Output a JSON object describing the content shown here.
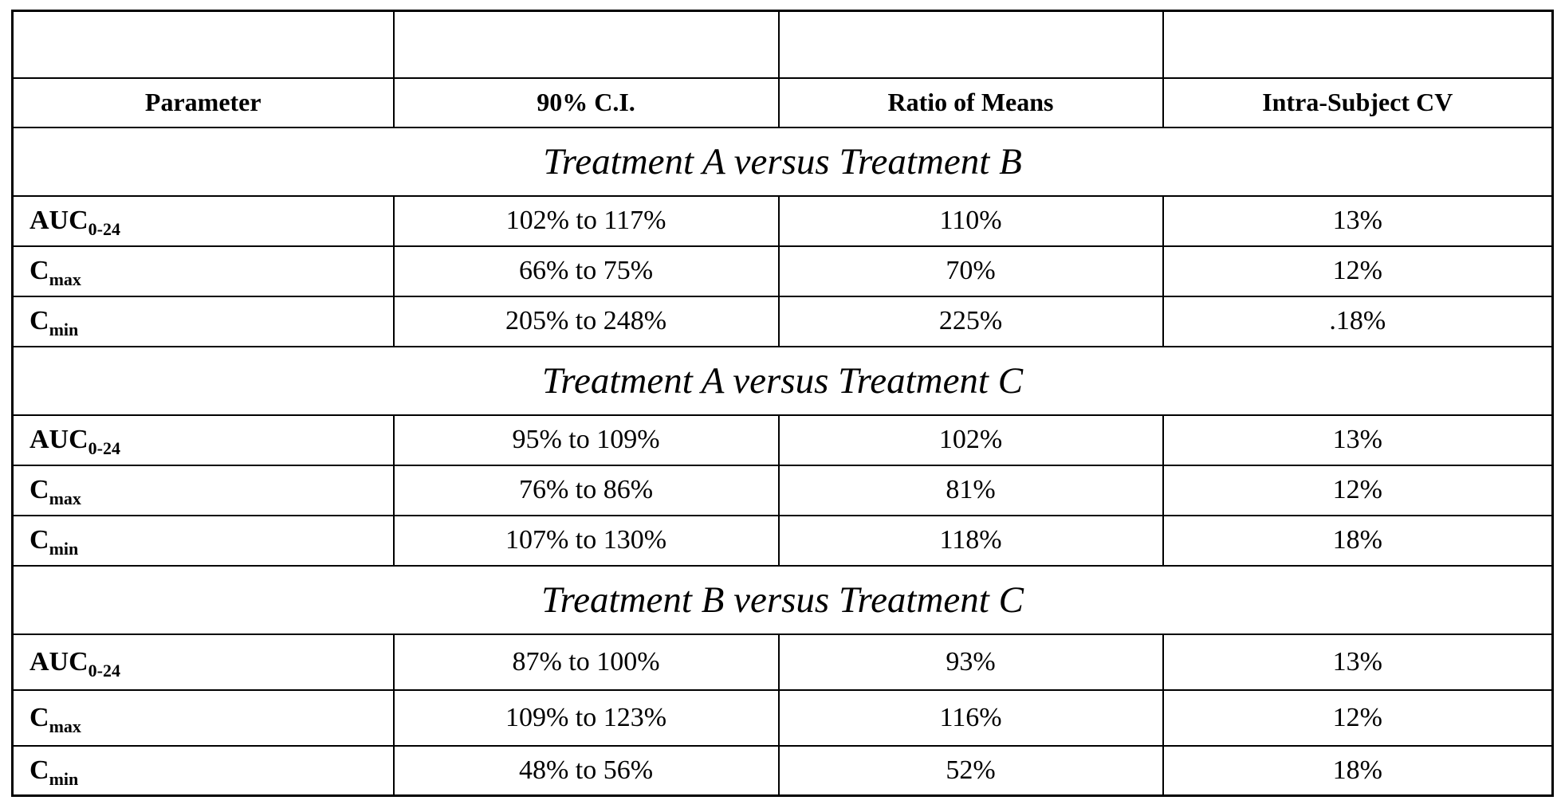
{
  "table": {
    "headers": [
      "Parameter",
      "90% C.I.",
      "Ratio of Means",
      "Intra-Subject CV"
    ],
    "sections": [
      {
        "title": "Treatment A versus Treatment B",
        "rows": [
          {
            "param_main": "AUC",
            "param_sub": "0-24",
            "ci": "102% to 117%",
            "ratio": "110%",
            "cv": "13%"
          },
          {
            "param_main": "C",
            "param_sub": "max",
            "ci": "66% to  75%",
            "ratio": "70%",
            "cv": "12%"
          },
          {
            "param_main": "C",
            "param_sub": "min",
            "ci": "205% to 248%",
            "ratio": "225%",
            "cv": ".18%"
          }
        ]
      },
      {
        "title": "Treatment A versus Treatment C",
        "rows": [
          {
            "param_main": "AUC",
            "param_sub": "0-24",
            "ci": "95% to 109%",
            "ratio": "102%",
            "cv": "13%"
          },
          {
            "param_main": "C",
            "param_sub": "max",
            "ci": "76% to  86%",
            "ratio": "81%",
            "cv": "12%"
          },
          {
            "param_main": "C",
            "param_sub": "min",
            "ci": "107% to 130%",
            "ratio": "118%",
            "cv": "18%"
          }
        ]
      },
      {
        "title": "Treatment B versus Treatment C",
        "rows": [
          {
            "param_main": "AUC",
            "param_sub": "0-24",
            "ci": "87% to  100%",
            "ratio": "93%",
            "cv": "13%"
          },
          {
            "param_main": "C",
            "param_sub": "max",
            "ci": "109% to 123%",
            "ratio": "116%",
            "cv": "12%"
          },
          {
            "param_main": "C",
            "param_sub": "min",
            "ci": "48% to  56%",
            "ratio": "52%",
            "cv": "18%"
          }
        ]
      }
    ]
  }
}
